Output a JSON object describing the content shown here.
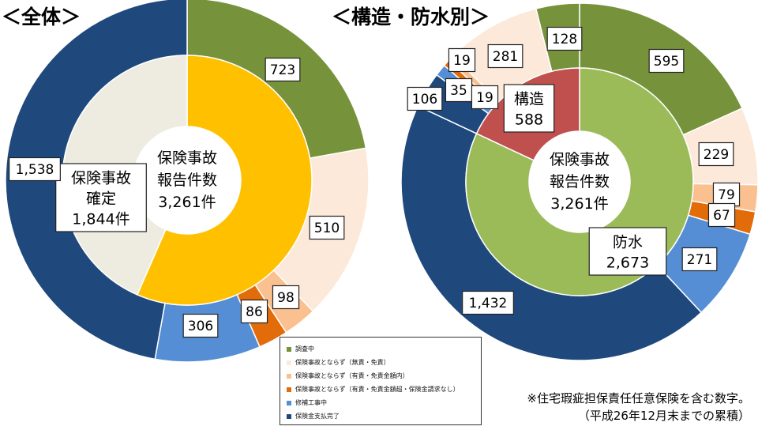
{
  "titles": {
    "left": "＜全体＞",
    "right": "＜構造・防水別＞"
  },
  "colors": {
    "調査中": "#76933c",
    "保険事故とならず（無責・免責）": "#fde9d9",
    "保険事故とならず（有責・免責金額内）": "#fac090",
    "保険事故とならず（有責・免責金額超・保険金請求なし）": "#e26b0a",
    "修補工事中": "#558ed5",
    "保険金支払完了": "#1f497d",
    "保険事故確定": "#ffc000",
    "保険事故以外": "#eeece1",
    "構造": "#c0504d",
    "防水": "#9bbb59",
    "center": "#ffffff"
  },
  "chart_data": [
    {
      "type": "pie",
      "title": "＜全体＞",
      "center_label": [
        "保険事故",
        "報告件数",
        "3,261件"
      ],
      "inner": [
        {
          "label": [
            "保険事故",
            "確定",
            "1,844件"
          ],
          "value": 1844,
          "color_key": "保険事故確定"
        },
        {
          "label": [],
          "value": 1417,
          "color_key": "保険事故以外"
        }
      ],
      "outer": [
        {
          "category": "調査中",
          "value": 723,
          "label": "723"
        },
        {
          "category": "保険事故とならず（無責・免責）",
          "value": 510,
          "label": "510"
        },
        {
          "category": "保険事故とならず（有責・免責金額内）",
          "value": 98,
          "label": "98"
        },
        {
          "category": "保険事故とならず（有責・免責金額超・保険金請求なし）",
          "value": 86,
          "label": "86"
        },
        {
          "category": "修補工事中",
          "value": 306,
          "label": "306"
        },
        {
          "category": "保険金支払完了",
          "value": 1538,
          "label": "1,538"
        }
      ]
    },
    {
      "type": "pie",
      "title": "＜構造・防水別＞",
      "center_label": [
        "保険事故",
        "報告件数",
        "3,261件"
      ],
      "inner": [
        {
          "label": [
            "防水",
            "2,673"
          ],
          "value": 2673,
          "color_key": "防水"
        },
        {
          "label": [
            "構造",
            "588"
          ],
          "value": 588,
          "color_key": "構造"
        }
      ],
      "outer": [
        {
          "category": "調査中",
          "value": 595,
          "label": "595"
        },
        {
          "category": "保険事故とならず（無責・免責）",
          "value": 229,
          "label": "229"
        },
        {
          "category": "保険事故とならず（有責・免責金額内）",
          "value": 79,
          "label": "79"
        },
        {
          "category": "保険事故とならず（有責・免責金額超・保険金請求なし）",
          "value": 67,
          "label": "67"
        },
        {
          "category": "修補工事中",
          "value": 271,
          "label": "271"
        },
        {
          "category": "保険金支払完了",
          "value": 1432,
          "label": "1,432"
        },
        {
          "category": "保険金支払完了",
          "value": 106,
          "label": "106"
        },
        {
          "category": "修補工事中",
          "value": 35,
          "label": "35"
        },
        {
          "category": "保険事故とならず（有責・免責金額超・保険金請求なし）",
          "value": 19,
          "label": "19"
        },
        {
          "category": "保険事故とならず（有責・免責金額内）",
          "value": 19,
          "label": "19"
        },
        {
          "category": "保険事故とならず（無責・免責）",
          "value": 281,
          "label": "281"
        },
        {
          "category": "調査中",
          "value": 128,
          "label": "128"
        }
      ]
    }
  ],
  "legend": [
    {
      "label": "調査中",
      "color_key": "調査中"
    },
    {
      "label": "保険事故とならず（無責・免責）",
      "color_key": "保険事故とならず（無責・免責）"
    },
    {
      "label": "保険事故とならず（有責・免責金額内）",
      "color_key": "保険事故とならず（有責・免責金額内）"
    },
    {
      "label": "保険事故とならず（有責・免責金額超・保険金請求なし）",
      "color_key": "保険事故とならず（有責・免責金額超・保険金請求なし）"
    },
    {
      "label": "修補工事中",
      "color_key": "修補工事中"
    },
    {
      "label": "保険金支払完了",
      "color_key": "保険金支払完了"
    }
  ],
  "note": [
    "※住宅瑕疵担保責任任意保険を含む数字。",
    "（平成26年12月末までの累積）"
  ]
}
